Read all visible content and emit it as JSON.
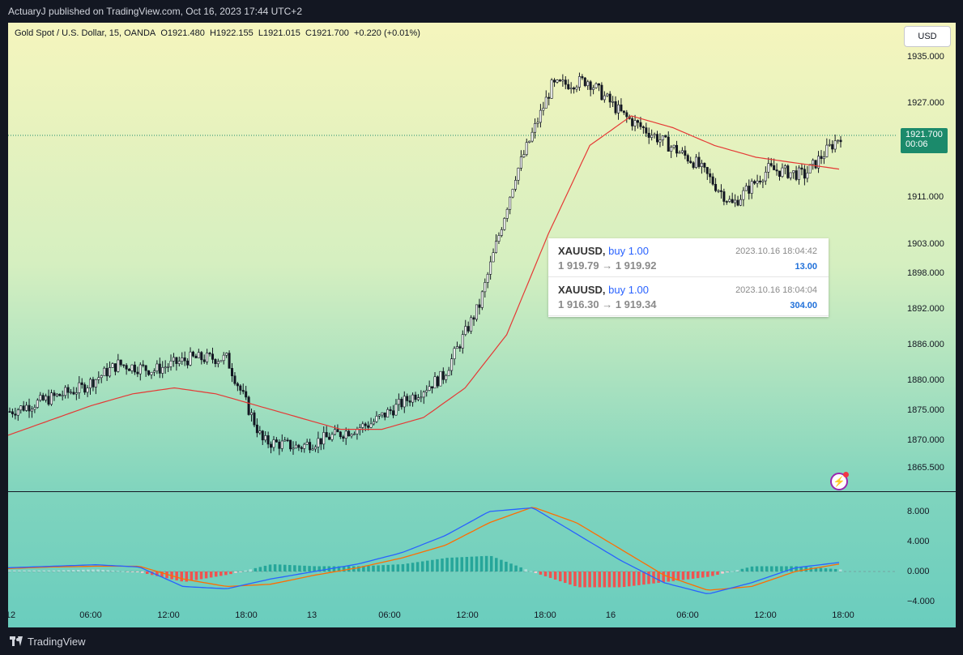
{
  "header": {
    "published": "ActuaryJ published on TradingView.com, Oct 16, 2023 17:44 UTC+2"
  },
  "legend": {
    "symbol": "Gold Spot / U.S. Dollar, 15, OANDA",
    "open": "O1921.480",
    "high": "H1922.155",
    "low": "L1921.015",
    "close": "C1921.700",
    "change": "+0.220 (+0.01%)"
  },
  "currency": "USD",
  "price_axis": [
    "1935.000",
    "1927.000",
    "1911.000",
    "1903.000",
    "1898.000",
    "1892.000",
    "1886.000",
    "1880.000",
    "1875.000",
    "1870.000",
    "1865.500"
  ],
  "last_price": {
    "price": "1921.700",
    "countdown": "00:06",
    "color": "#1b8a6b"
  },
  "indicator_axis": [
    "8.000",
    "4.000",
    "0.000",
    "−4.000"
  ],
  "time_axis": [
    "12",
    "06:00",
    "12:00",
    "18:00",
    "13",
    "06:00",
    "12:00",
    "18:00",
    "16",
    "06:00",
    "12:00",
    "18:00"
  ],
  "trades": [
    {
      "symbol": "XAUUSD,",
      "side": "buy 1.00",
      "time": "2023.10.16 18:04:42",
      "prices": "1 919.79 → 1 919.92",
      "profit": "13.00"
    },
    {
      "symbol": "XAUUSD,",
      "side": "buy 1.00",
      "time": "2023.10.16 18:04:04",
      "prices": "1 916.30 → 1 919.34",
      "profit": "304.00"
    }
  ],
  "footer": {
    "brand": "TradingView"
  },
  "colors": {
    "up": "#22ab94",
    "down": "#f23645",
    "ma": "#e53935",
    "macd": "#2962ff",
    "signal": "#ff6d00"
  },
  "chart_data": {
    "type": "candlestick",
    "ma_close": [
      1871,
      1873.5,
      1876,
      1878,
      1879,
      1878,
      1876,
      1874,
      1872,
      1872,
      1874,
      1879,
      1888,
      1905,
      1920,
      1925,
      1923,
      1920,
      1918,
      1917,
      1916
    ],
    "close": [
      1875,
      1877,
      1879,
      1883,
      1882,
      1884,
      1884,
      1870,
      1869,
      1871,
      1873,
      1877,
      1881,
      1893,
      1915,
      1930,
      1931,
      1925,
      1921,
      1917,
      1910,
      1916,
      1915,
      1921.7
    ],
    "macd": [
      0.5,
      0.7,
      0.9,
      0.6,
      -2.0,
      -2.3,
      -1.0,
      0,
      1.0,
      2.5,
      4.8,
      8.0,
      8.5,
      5.0,
      1.5,
      -1.5,
      -3.0,
      -1.5,
      0.5,
      1.2
    ],
    "signal": [
      0.4,
      0.6,
      0.7,
      0.7,
      -1.0,
      -2.0,
      -1.7,
      -0.5,
      0.5,
      1.8,
      3.5,
      6.5,
      8.6,
      6.5,
      3.0,
      -0.5,
      -2.5,
      -2.0,
      0,
      1.0
    ]
  }
}
